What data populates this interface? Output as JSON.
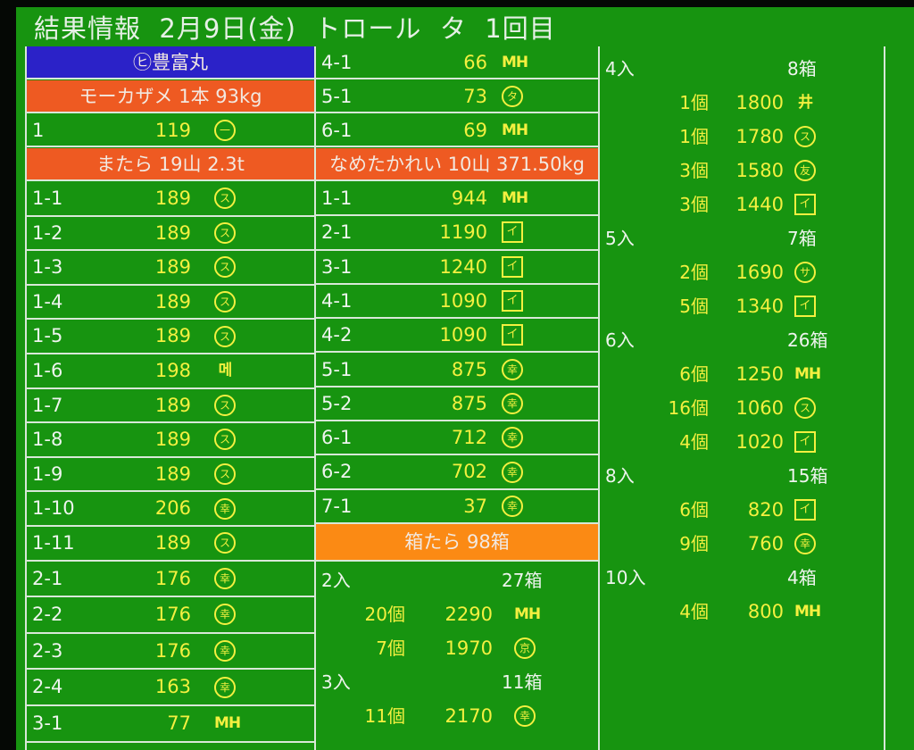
{
  "title": "結果情報  2月9日(金)  トロール  タ  1回目",
  "colors": {
    "background": "#179410",
    "blue_header": "#2b22c8",
    "orange_header": "#ee5a22",
    "amber_header": "#fb8a14",
    "value_text": "#f4f040",
    "label_text": "#eef4ee"
  },
  "column1": {
    "vessel": "㋪豊富丸",
    "section1_header": "モーカザメ 1本 93kg",
    "section1_rows": [
      {
        "lot": "1",
        "price": "119",
        "mark": {
          "char": "一",
          "style": "circle"
        }
      }
    ],
    "section2_header": "またら 19山 2.3t",
    "section2_rows": [
      {
        "lot": "1-1",
        "price": "189",
        "mark": {
          "char": "ス",
          "style": "circle"
        }
      },
      {
        "lot": "1-2",
        "price": "189",
        "mark": {
          "char": "ス",
          "style": "circle"
        }
      },
      {
        "lot": "1-3",
        "price": "189",
        "mark": {
          "char": "ス",
          "style": "circle"
        }
      },
      {
        "lot": "1-4",
        "price": "189",
        "mark": {
          "char": "ス",
          "style": "circle"
        }
      },
      {
        "lot": "1-5",
        "price": "189",
        "mark": {
          "char": "ス",
          "style": "circle"
        }
      },
      {
        "lot": "1-6",
        "price": "198",
        "mark": {
          "char": "메",
          "style": "plain"
        }
      },
      {
        "lot": "1-7",
        "price": "189",
        "mark": {
          "char": "ス",
          "style": "circle"
        }
      },
      {
        "lot": "1-8",
        "price": "189",
        "mark": {
          "char": "ス",
          "style": "circle"
        }
      },
      {
        "lot": "1-9",
        "price": "189",
        "mark": {
          "char": "ス",
          "style": "circle"
        }
      },
      {
        "lot": "1-10",
        "price": "206",
        "mark": {
          "char": "幸",
          "style": "circle"
        }
      },
      {
        "lot": "1-11",
        "price": "189",
        "mark": {
          "char": "ス",
          "style": "circle"
        }
      },
      {
        "lot": "2-1",
        "price": "176",
        "mark": {
          "char": "幸",
          "style": "circle"
        }
      },
      {
        "lot": "2-2",
        "price": "176",
        "mark": {
          "char": "幸",
          "style": "circle"
        }
      },
      {
        "lot": "2-3",
        "price": "176",
        "mark": {
          "char": "幸",
          "style": "circle"
        }
      },
      {
        "lot": "2-4",
        "price": "163",
        "mark": {
          "char": "幸",
          "style": "circle"
        }
      },
      {
        "lot": "3-1",
        "price": "77",
        "mark": {
          "char": "MH",
          "style": "plain"
        }
      }
    ]
  },
  "column2": {
    "top_rows": [
      {
        "lot": "4-1",
        "price": "66",
        "mark": {
          "char": "MH",
          "style": "plain"
        }
      },
      {
        "lot": "5-1",
        "price": "73",
        "mark": {
          "char": "タ",
          "style": "circle"
        }
      },
      {
        "lot": "6-1",
        "price": "69",
        "mark": {
          "char": "MH",
          "style": "plain"
        }
      }
    ],
    "section_header": "なめたかれい 10山 371.50kg",
    "section_rows": [
      {
        "lot": "1-1",
        "price": "944",
        "mark": {
          "char": "MH",
          "style": "plain"
        }
      },
      {
        "lot": "2-1",
        "price": "1190",
        "mark": {
          "char": "イ",
          "style": "box"
        }
      },
      {
        "lot": "3-1",
        "price": "1240",
        "mark": {
          "char": "イ",
          "style": "box"
        }
      },
      {
        "lot": "4-1",
        "price": "1090",
        "mark": {
          "char": "イ",
          "style": "box"
        }
      },
      {
        "lot": "4-2",
        "price": "1090",
        "mark": {
          "char": "イ",
          "style": "box"
        }
      },
      {
        "lot": "5-1",
        "price": "875",
        "mark": {
          "char": "幸",
          "style": "circle"
        }
      },
      {
        "lot": "5-2",
        "price": "875",
        "mark": {
          "char": "幸",
          "style": "circle"
        }
      },
      {
        "lot": "6-1",
        "price": "712",
        "mark": {
          "char": "幸",
          "style": "circle"
        }
      },
      {
        "lot": "6-2",
        "price": "702",
        "mark": {
          "char": "幸",
          "style": "circle"
        }
      },
      {
        "lot": "7-1",
        "price": "37",
        "mark": {
          "char": "幸",
          "style": "circle"
        }
      }
    ],
    "box_header": "箱たら 98箱",
    "box_groups": [
      {
        "label": "2入",
        "boxes": "27箱",
        "items": [
          {
            "count": "20個",
            "price": "2290",
            "mark": {
              "char": "MH",
              "style": "plain"
            }
          },
          {
            "count": "7個",
            "price": "1970",
            "mark": {
              "char": "京",
              "style": "circle"
            }
          }
        ]
      },
      {
        "label": "3入",
        "boxes": "11箱",
        "items": [
          {
            "count": "11個",
            "price": "2170",
            "mark": {
              "char": "幸",
              "style": "circle"
            }
          }
        ]
      }
    ]
  },
  "column3": {
    "box_groups": [
      {
        "label": "4入",
        "boxes": "8箱",
        "items": [
          {
            "count": "1個",
            "price": "1800",
            "mark": {
              "char": "井",
              "style": "plain"
            }
          },
          {
            "count": "1個",
            "price": "1780",
            "mark": {
              "char": "ス",
              "style": "circle"
            }
          },
          {
            "count": "3個",
            "price": "1580",
            "mark": {
              "char": "友",
              "style": "circle"
            }
          },
          {
            "count": "3個",
            "price": "1440",
            "mark": {
              "char": "イ",
              "style": "box"
            }
          }
        ]
      },
      {
        "label": "5入",
        "boxes": "7箱",
        "items": [
          {
            "count": "2個",
            "price": "1690",
            "mark": {
              "char": "サ",
              "style": "circle"
            }
          },
          {
            "count": "5個",
            "price": "1340",
            "mark": {
              "char": "イ",
              "style": "box"
            }
          }
        ]
      },
      {
        "label": "6入",
        "boxes": "26箱",
        "items": [
          {
            "count": "6個",
            "price": "1250",
            "mark": {
              "char": "MH",
              "style": "plain"
            }
          },
          {
            "count": "16個",
            "price": "1060",
            "mark": {
              "char": "ス",
              "style": "circle"
            }
          },
          {
            "count": "4個",
            "price": "1020",
            "mark": {
              "char": "イ",
              "style": "box"
            }
          }
        ]
      },
      {
        "label": "8入",
        "boxes": "15箱",
        "items": [
          {
            "count": "6個",
            "price": "820",
            "mark": {
              "char": "イ",
              "style": "box"
            }
          },
          {
            "count": "9個",
            "price": "760",
            "mark": {
              "char": "幸",
              "style": "circle"
            }
          }
        ]
      },
      {
        "label": "10入",
        "boxes": "4箱",
        "items": [
          {
            "count": "4個",
            "price": "800",
            "mark": {
              "char": "MH",
              "style": "plain"
            }
          }
        ]
      }
    ]
  }
}
